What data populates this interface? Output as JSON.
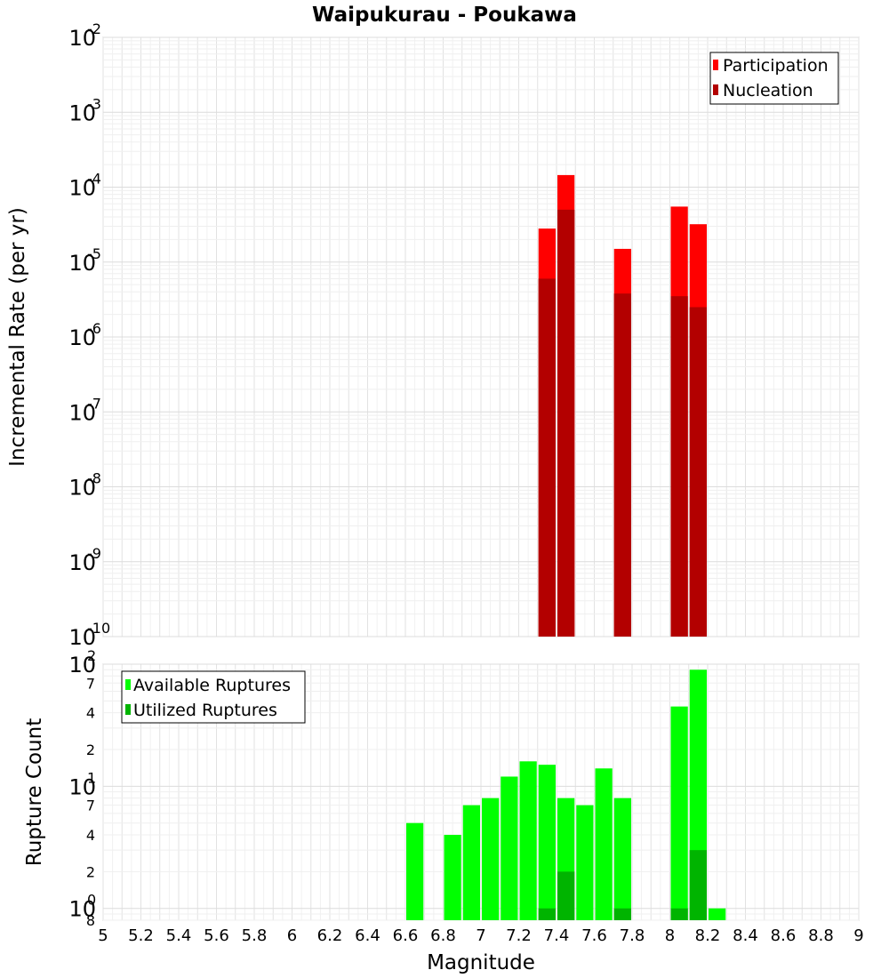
{
  "title": "Waipukurau - Poukawa",
  "x_axis": {
    "label": "Magnitude",
    "range": [
      5,
      9
    ],
    "ticks": [
      "5",
      "5.2",
      "5.4",
      "5.6",
      "5.8",
      "6",
      "6.2",
      "6.4",
      "6.6",
      "6.8",
      "7",
      "7.2",
      "7.4",
      "7.6",
      "7.8",
      "8",
      "8.2",
      "8.4",
      "8.6",
      "8.8",
      "9"
    ]
  },
  "chart_data": [
    {
      "type": "bar",
      "title": "Waipukurau - Poukawa",
      "ylabel": "Incremental Rate (per yr)",
      "xlabel": "",
      "y_scale": "log",
      "ylim": [
        1e-10,
        0.01
      ],
      "grid": true,
      "legend_position": "top-right",
      "y_ticks": [
        {
          "base": "10",
          "exp": "-10"
        },
        {
          "base": "10",
          "exp": "-9"
        },
        {
          "base": "10",
          "exp": "-8"
        },
        {
          "base": "10",
          "exp": "-7"
        },
        {
          "base": "10",
          "exp": "-6"
        },
        {
          "base": "10",
          "exp": "-5"
        },
        {
          "base": "10",
          "exp": "-4"
        },
        {
          "base": "10",
          "exp": "-3"
        },
        {
          "base": "10",
          "exp": "-2"
        }
      ],
      "series": [
        {
          "name": "Participation",
          "color": "#ff0000",
          "x": [
            7.35,
            7.45,
            7.75,
            8.05,
            8.15
          ],
          "values": [
            2.8e-05,
            0.000145,
            1.5e-05,
            5.5e-05,
            3.2e-05
          ]
        },
        {
          "name": "Nucleation",
          "color": "#b30000",
          "x": [
            7.35,
            7.45,
            7.75,
            8.05,
            8.15
          ],
          "values": [
            6e-06,
            5e-05,
            3.8e-06,
            3.5e-06,
            2.5e-06
          ]
        }
      ]
    },
    {
      "type": "bar",
      "ylabel": "Rupture Count",
      "xlabel": "Magnitude",
      "y_scale": "log",
      "ylim": [
        0.8,
        100
      ],
      "grid": true,
      "legend_position": "top-left",
      "y_ticks": [
        {
          "base": "10",
          "exp": "2"
        },
        {
          "base": "10",
          "exp": "1"
        },
        {
          "base": "10",
          "exp": "0"
        }
      ],
      "minor_tick_labels": [
        "7",
        "4",
        "2",
        "7",
        "4",
        "2",
        "8"
      ],
      "series": [
        {
          "name": "Available Ruptures",
          "color": "#00ff00",
          "x": [
            6.65,
            6.85,
            6.95,
            7.05,
            7.15,
            7.25,
            7.35,
            7.45,
            7.55,
            7.65,
            7.75,
            8.05,
            8.15,
            8.25
          ],
          "values": [
            5,
            4,
            7,
            8,
            12,
            16,
            15,
            8,
            7,
            14,
            8,
            45,
            90,
            1
          ]
        },
        {
          "name": "Utilized Ruptures",
          "color": "#00b400",
          "x": [
            7.35,
            7.45,
            7.75,
            8.05,
            8.15
          ],
          "values": [
            1,
            2,
            1,
            1,
            3
          ]
        }
      ]
    }
  ]
}
